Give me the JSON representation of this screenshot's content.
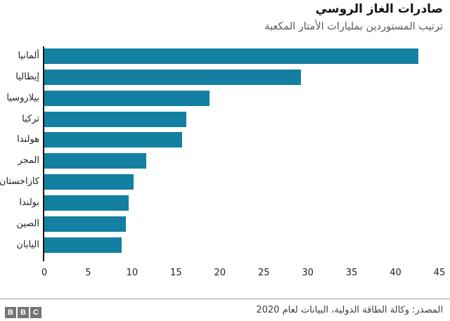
{
  "header": {
    "title": "صادرات الغاز الروسي",
    "subtitle": "ترتيب المستوردين بمليارات الأمتار المكعبة"
  },
  "chart_data": {
    "type": "bar",
    "orientation": "horizontal",
    "title": "صادرات الغاز الروسي",
    "subtitle": "ترتيب المستوردين بمليارات الأمتار المكعبة",
    "categories": [
      "ألمانيا",
      "إيطاليا",
      "بيلاروسيا",
      "تركيا",
      "هولندا",
      "المجر",
      "كازاخستان",
      "بولندا",
      "الصين",
      "اليابان"
    ],
    "values": [
      42.6,
      29.2,
      18.8,
      16.2,
      15.7,
      11.6,
      10.2,
      9.6,
      9.3,
      8.8
    ],
    "xlabel": "",
    "ylabel": "",
    "xlim": [
      0,
      45
    ],
    "x_ticks": [
      0,
      5,
      10,
      15,
      20,
      25,
      30,
      35,
      40,
      45
    ],
    "bar_color": "#1380A1",
    "axis_color": "#141414",
    "grid": false,
    "legend": false
  },
  "footer": {
    "source": "المصدر: وكالة الطاقة الدولية، البيانات لعام 2020",
    "logo_letters": [
      "B",
      "B",
      "C"
    ]
  }
}
